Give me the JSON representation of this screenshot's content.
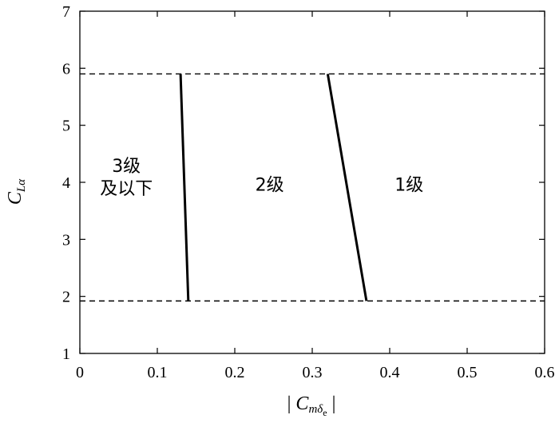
{
  "chart_data": {
    "type": "line",
    "title": "",
    "xlabel": {
      "prefix": "| ",
      "main": "C",
      "sub": "mδ",
      "subsub": "e",
      "suffix": " |"
    },
    "ylabel": {
      "main": "C",
      "sub": "Lα"
    },
    "xlim": [
      0,
      0.6
    ],
    "ylim": [
      1,
      7
    ],
    "xticks": [
      0,
      0.1,
      0.2,
      0.3,
      0.4,
      0.5,
      0.6
    ],
    "xtick_labels": [
      "0",
      "0.1",
      "0.2",
      "0.3",
      "0.4",
      "0.5",
      "0.6"
    ],
    "yticks": [
      1,
      2,
      3,
      4,
      5,
      6,
      7
    ],
    "ytick_labels": [
      "1",
      "2",
      "3",
      "4",
      "5",
      "6",
      "7"
    ],
    "grid": false,
    "boundary_lines": [
      {
        "x": [
          0.13,
          0.14
        ],
        "y": [
          5.9,
          1.92
        ],
        "style": "solid"
      },
      {
        "x": [
          0.32,
          0.37
        ],
        "y": [
          5.9,
          1.92
        ],
        "style": "solid"
      }
    ],
    "reference_lines": [
      {
        "y": 5.9,
        "style": "dashed"
      },
      {
        "y": 1.92,
        "style": "dashed"
      }
    ],
    "annotations": [
      {
        "lines": [
          "3级",
          "及以下"
        ],
        "x": 0.06,
        "y": 4.0
      },
      {
        "lines": [
          "2级"
        ],
        "x": 0.245,
        "y": 3.85
      },
      {
        "lines": [
          "1级"
        ],
        "x": 0.425,
        "y": 3.85
      }
    ]
  }
}
